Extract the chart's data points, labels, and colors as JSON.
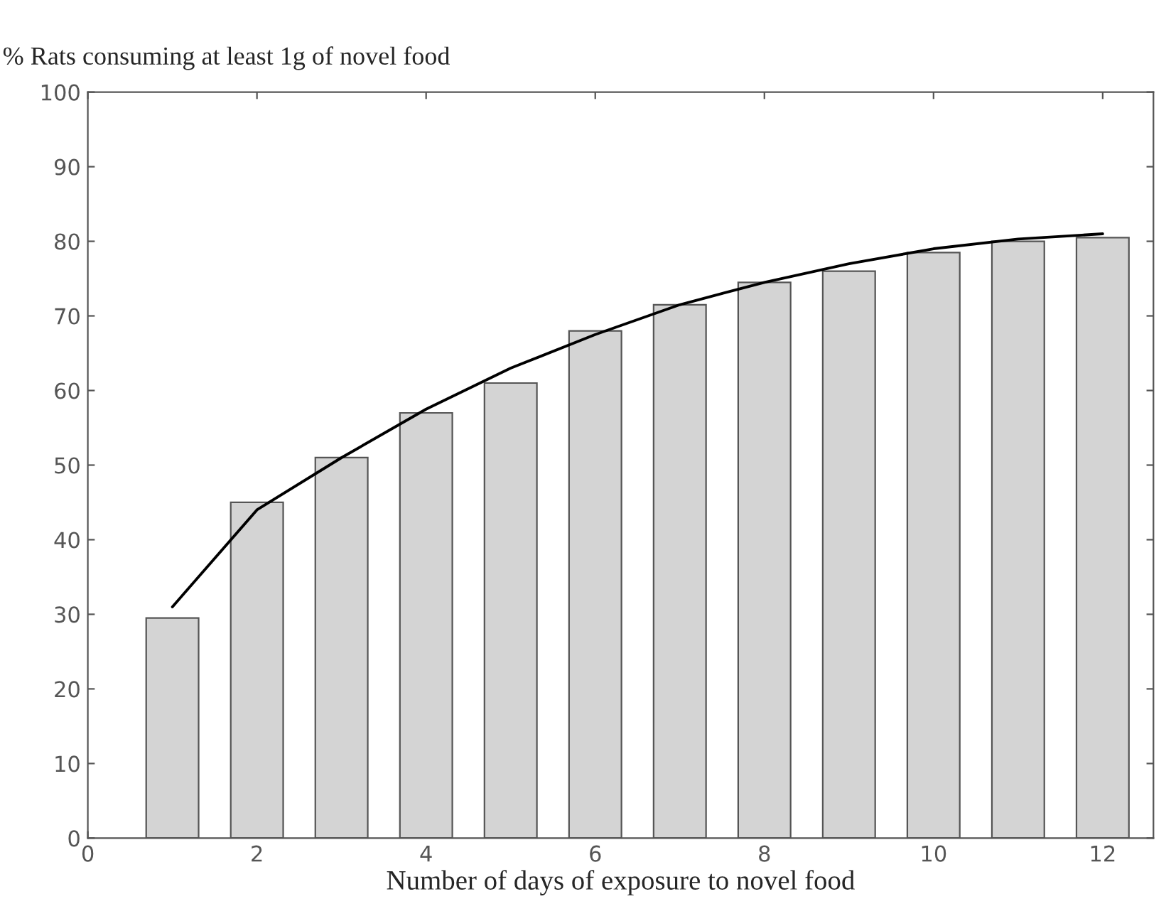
{
  "chart_data": {
    "type": "bar",
    "title": "% Rats consuming at least 1g of novel food",
    "xlabel": "Number of days of exposure to novel food",
    "x": [
      1,
      2,
      3,
      4,
      5,
      6,
      7,
      8,
      9,
      10,
      11,
      12
    ],
    "series": [
      {
        "color": "#d4d4d4",
        "values": [
          29.5,
          45,
          51,
          57,
          61,
          68,
          71.5,
          74.5,
          76,
          78.5,
          80,
          80.5
        ]
      },
      {
        "type": "line",
        "color": "#000000",
        "x": [
          1,
          2,
          3,
          4,
          5,
          6,
          7,
          8,
          9,
          10,
          11,
          12
        ],
        "values": [
          31,
          44,
          51,
          57.5,
          63,
          67.5,
          71.5,
          74.5,
          77,
          79,
          80.3,
          81
        ]
      }
    ],
    "xlim": [
      0,
      12.6
    ],
    "ylim": [
      0,
      100
    ],
    "xticks": [
      0,
      2,
      4,
      6,
      8,
      10,
      12
    ],
    "yticks": [
      0,
      10,
      20,
      30,
      40,
      50,
      60,
      70,
      80,
      90,
      100
    ],
    "grid": false,
    "legend": false
  }
}
